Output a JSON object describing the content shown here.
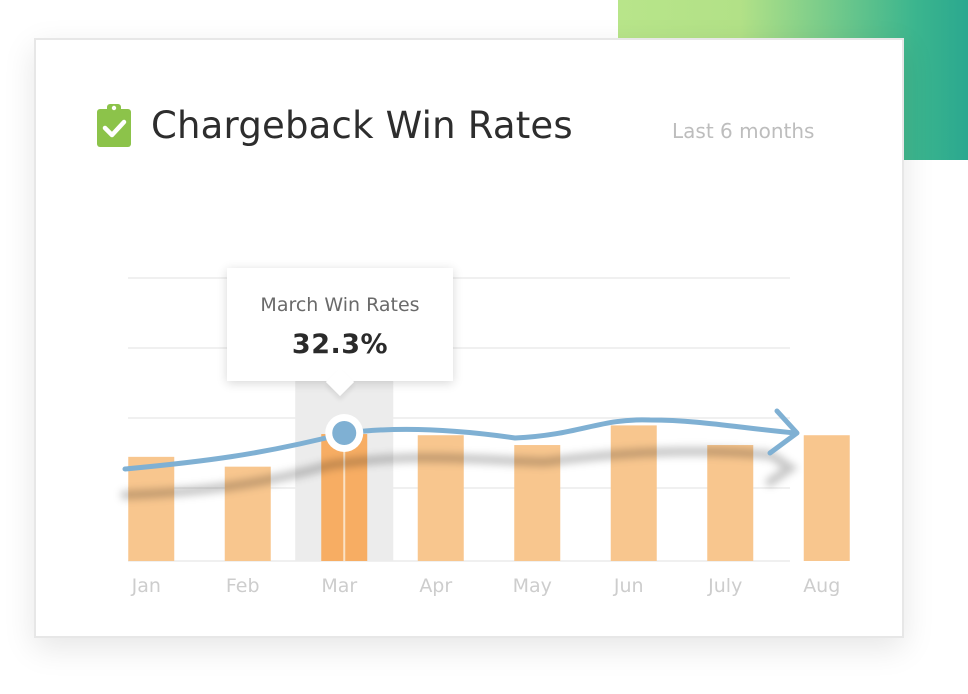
{
  "card": {
    "title": "Chargeback Win Rates",
    "period": "Last 6 months",
    "icon": "clipboard-check-icon",
    "icon_color": "#8cc34a"
  },
  "colors": {
    "accent_gradient_start": "#b8e58a",
    "accent_gradient_end": "#2ba88f",
    "bar": "#f8c68e",
    "bar_highlight": "#f7ad63",
    "trend_line": "#7fb0d3",
    "highlight_band": "#ececec"
  },
  "tooltip": {
    "label": "March Win Rates",
    "value": "32.3%"
  },
  "chart_data": {
    "type": "bar",
    "categories": [
      "Jan",
      "Feb",
      "Mar",
      "Apr",
      "May",
      "Jun",
      "July",
      "Aug"
    ],
    "values": [
      26.5,
      24,
      32.3,
      32,
      29.5,
      34.5,
      29.5,
      32
    ],
    "highlighted_index": 2,
    "highlighted_value": 32.3,
    "ylim": [
      0,
      72
    ],
    "grid": true,
    "trend_line": true
  }
}
